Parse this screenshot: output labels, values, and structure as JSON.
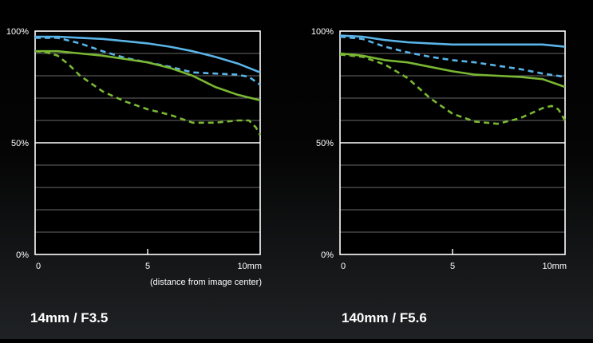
{
  "chart_data": [
    {
      "type": "line",
      "title": "14mm / F3.5",
      "xlabel": "(distance from image center)",
      "xlim": [
        0,
        10
      ],
      "ylim": [
        0,
        100
      ],
      "y_ticks": [
        {
          "value": 100,
          "label": "100%"
        },
        {
          "value": 50,
          "label": "50%"
        },
        {
          "value": 0,
          "label": "0%"
        }
      ],
      "x_ticks": [
        {
          "value": 0,
          "label": "0"
        },
        {
          "value": 5,
          "label": "5"
        },
        {
          "value": 10,
          "label": "10mm"
        }
      ],
      "grid": true,
      "series": [
        {
          "color": "#5ab4e8",
          "dash": "solid",
          "x": [
            0,
            1,
            2,
            3,
            4,
            5,
            6,
            7,
            8,
            9,
            10
          ],
          "y": [
            97.5,
            97.5,
            97,
            96.5,
            95.5,
            94.5,
            93,
            91,
            88.5,
            85.5,
            81.5
          ]
        },
        {
          "color": "#5ab4e8",
          "dash": "dashed",
          "x": [
            0,
            1,
            2,
            3,
            4,
            5,
            6,
            7,
            8,
            9,
            9.5,
            10
          ],
          "y": [
            97,
            97,
            94.5,
            91,
            88,
            86,
            84,
            81.5,
            81,
            80.5,
            79.5,
            76
          ]
        },
        {
          "color": "#7ab833",
          "dash": "solid",
          "x": [
            0,
            1,
            2,
            3,
            4,
            5,
            6,
            7,
            8,
            9,
            10
          ],
          "y": [
            91,
            91,
            90,
            89,
            87.5,
            86,
            83.5,
            80,
            75,
            71.5,
            69
          ]
        },
        {
          "color": "#7ab833",
          "dash": "dashed",
          "x": [
            0,
            0.5,
            1,
            1.5,
            2,
            3,
            4,
            5,
            6,
            7,
            8,
            9,
            9.5,
            9.8,
            10
          ],
          "y": [
            91,
            90.5,
            89,
            85,
            80,
            73,
            68.5,
            65,
            62.5,
            59,
            59,
            60,
            60,
            57,
            53.5
          ]
        }
      ]
    },
    {
      "type": "line",
      "title": "140mm / F5.6",
      "xlabel": "",
      "xlim": [
        0,
        10
      ],
      "ylim": [
        0,
        100
      ],
      "y_ticks": [
        {
          "value": 100,
          "label": "100%"
        },
        {
          "value": 50,
          "label": "50%"
        },
        {
          "value": 0,
          "label": "0%"
        }
      ],
      "x_ticks": [
        {
          "value": 0,
          "label": "0"
        },
        {
          "value": 5,
          "label": "5"
        },
        {
          "value": 10,
          "label": "10mm"
        }
      ],
      "grid": true,
      "series": [
        {
          "color": "#5ab4e8",
          "dash": "solid",
          "x": [
            0,
            1,
            2,
            3,
            4,
            5,
            6,
            7,
            8,
            9,
            10
          ],
          "y": [
            98,
            97.5,
            96,
            95,
            94.5,
            94,
            94,
            94,
            94,
            94,
            93
          ]
        },
        {
          "color": "#5ab4e8",
          "dash": "dashed",
          "x": [
            0,
            1,
            2,
            3,
            4,
            5,
            6,
            7,
            8,
            9,
            10
          ],
          "y": [
            97.5,
            96.5,
            93,
            90.5,
            88.5,
            87,
            86,
            84.5,
            83,
            81,
            79.5
          ]
        },
        {
          "color": "#7ab833",
          "dash": "solid",
          "x": [
            0,
            1,
            2,
            3,
            4,
            5,
            6,
            7,
            8,
            9,
            10
          ],
          "y": [
            90,
            89,
            87,
            86,
            84,
            82,
            80.5,
            80,
            79.5,
            78.5,
            75
          ]
        },
        {
          "color": "#7ab833",
          "dash": "dashed",
          "x": [
            0,
            1,
            2,
            3,
            4,
            5,
            6,
            7,
            8,
            9,
            9.4,
            9.7,
            10
          ],
          "y": [
            89.5,
            88.5,
            85,
            79,
            70,
            63,
            59.5,
            58.5,
            61,
            65.5,
            66.5,
            65,
            60
          ]
        }
      ]
    }
  ]
}
